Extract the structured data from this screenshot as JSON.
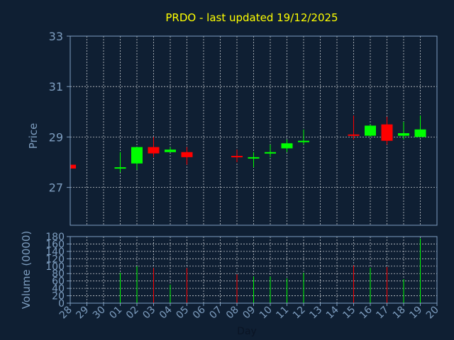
{
  "chart_data": {
    "type": "candlestick",
    "title": "PRDO - last updated 19/12/2025",
    "xlabel": "Day",
    "x_ticks": [
      "28",
      "29",
      "30",
      "01",
      "02",
      "03",
      "04",
      "05",
      "06",
      "07",
      "08",
      "09",
      "10",
      "11",
      "12",
      "13",
      "14",
      "15",
      "16",
      "17",
      "18",
      "19",
      "20"
    ],
    "price": {
      "ylabel": "Price",
      "ylim": [
        25.5,
        33
      ],
      "y_ticks": [
        27,
        29,
        31,
        33
      ],
      "candles": [
        {
          "day": "28",
          "open": 27.9,
          "high": 28.0,
          "low": 27.75,
          "close": 27.75
        },
        {
          "day": "01",
          "open": 27.75,
          "high": 28.4,
          "low": 27.6,
          "close": 27.8
        },
        {
          "day": "02",
          "open": 27.95,
          "high": 28.6,
          "low": 27.7,
          "close": 28.6
        },
        {
          "day": "03",
          "open": 28.6,
          "high": 29.0,
          "low": 28.2,
          "close": 28.35
        },
        {
          "day": "04",
          "open": 28.4,
          "high": 28.6,
          "low": 28.4,
          "close": 28.5
        },
        {
          "day": "05",
          "open": 28.4,
          "high": 28.6,
          "low": 27.9,
          "close": 28.2
        },
        {
          "day": "08",
          "open": 28.25,
          "high": 28.5,
          "low": 28.0,
          "close": 28.2
        },
        {
          "day": "09",
          "open": 28.15,
          "high": 28.4,
          "low": 27.8,
          "close": 28.2
        },
        {
          "day": "10",
          "open": 28.35,
          "high": 28.7,
          "low": 28.2,
          "close": 28.4
        },
        {
          "day": "11",
          "open": 28.55,
          "high": 28.9,
          "low": 28.4,
          "close": 28.75
        },
        {
          "day": "12",
          "open": 28.8,
          "high": 29.3,
          "low": 28.7,
          "close": 28.85
        },
        {
          "day": "15",
          "open": 29.1,
          "high": 29.85,
          "low": 28.9,
          "close": 29.05
        },
        {
          "day": "16",
          "open": 29.05,
          "high": 29.5,
          "low": 29.0,
          "close": 29.45
        },
        {
          "day": "17",
          "open": 29.5,
          "high": 29.8,
          "low": 28.7,
          "close": 28.85
        },
        {
          "day": "18",
          "open": 29.05,
          "high": 29.6,
          "low": 28.9,
          "close": 29.15
        },
        {
          "day": "19",
          "open": 29.0,
          "high": 29.85,
          "low": 29.0,
          "close": 29.3
        }
      ]
    },
    "volume": {
      "ylabel": "Volume (0000)",
      "ylim": [
        0,
        180
      ],
      "y_ticks": [
        0,
        20,
        40,
        60,
        80,
        100,
        120,
        140,
        160,
        180
      ],
      "bars": [
        {
          "day": "28",
          "value": 0
        },
        {
          "day": "01",
          "value": 82
        },
        {
          "day": "02",
          "value": 100
        },
        {
          "day": "03",
          "value": 95
        },
        {
          "day": "04",
          "value": 50
        },
        {
          "day": "05",
          "value": 95
        },
        {
          "day": "08",
          "value": 78
        },
        {
          "day": "09",
          "value": 72
        },
        {
          "day": "10",
          "value": 72
        },
        {
          "day": "11",
          "value": 67
        },
        {
          "day": "12",
          "value": 82
        },
        {
          "day": "15",
          "value": 102
        },
        {
          "day": "16",
          "value": 96
        },
        {
          "day": "17",
          "value": 98
        },
        {
          "day": "18",
          "value": 65
        },
        {
          "day": "19",
          "value": 175
        }
      ]
    },
    "colors": {
      "background": "#0f1f33",
      "up": "#00ff00",
      "down": "#ff0000",
      "grid": "#ffffff",
      "axis": "#7e9ec0",
      "title": "#ffff00"
    },
    "grid": true,
    "legend": "none"
  }
}
